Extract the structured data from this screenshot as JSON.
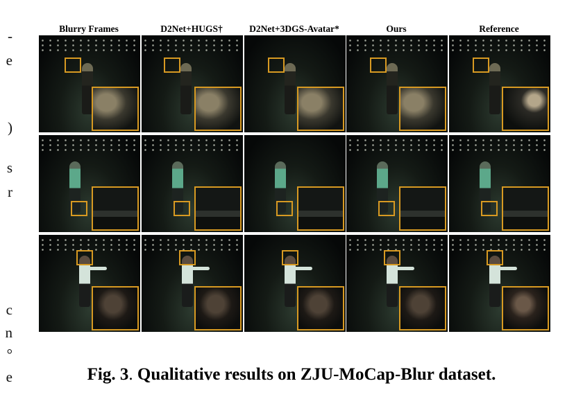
{
  "figure": {
    "column_headers": [
      "Blurry Frames",
      "D2Net+HUGS†",
      "D2Net+3DGS-Avatar*",
      "Ours",
      "Reference"
    ],
    "caption_label": "Fig. 3",
    "caption_separator": ". ",
    "caption_text": "Qualitative results on ZJU-MoCap-Blur dataset.",
    "rows": [
      {
        "subject": "shoulder",
        "zoom_region": "upper-body"
      },
      {
        "subject": "shoes",
        "zoom_region": "feet"
      },
      {
        "subject": "face",
        "zoom_region": "head"
      }
    ]
  },
  "left_column_fragments": [
    "-",
    "e",
    ")",
    "s",
    "r",
    "c",
    "n",
    "°",
    "e"
  ]
}
